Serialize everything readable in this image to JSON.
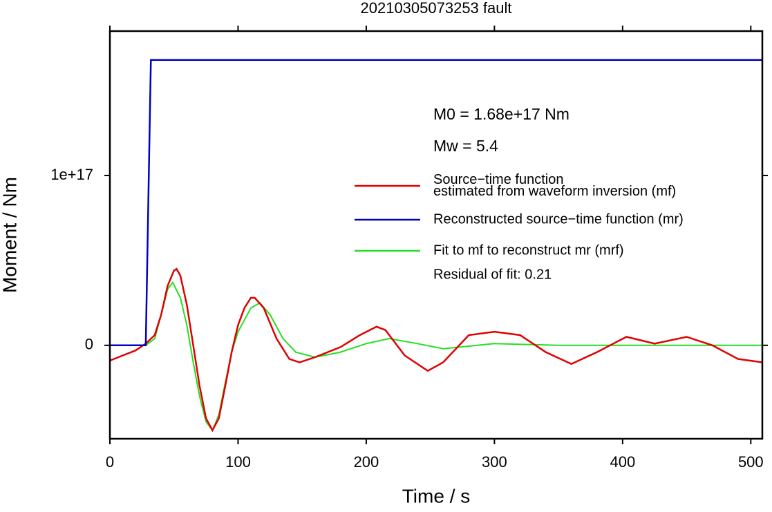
{
  "chart_data": {
    "type": "line",
    "title": "20210305073253 fault",
    "xlabel": "Time / s",
    "ylabel": "Moment / Nm",
    "xlim": [
      0,
      509
    ],
    "ylim": [
      -5.5e+16,
      1.85e+17
    ],
    "xticks": [
      0,
      100,
      200,
      300,
      400,
      500
    ],
    "yticks": [
      0,
      {
        "value": 1e+17,
        "label": "1e+17"
      }
    ],
    "annotations": [
      "M0 = 1.68e+17 Nm",
      "Mw = 5.4",
      "Residual of fit: 0.21"
    ],
    "series": [
      {
        "name": "Source−time function\nestimated from waveform inversion (mf)",
        "color": "#e00000",
        "x": [
          0,
          10,
          20,
          28,
          35,
          40,
          45,
          50,
          52,
          55,
          60,
          65,
          70,
          75,
          80,
          85,
          90,
          95,
          100,
          105,
          110,
          113,
          120,
          130,
          140,
          148,
          160,
          180,
          195,
          208,
          215,
          230,
          248,
          260,
          280,
          300,
          320,
          340,
          360,
          380,
          403,
          425,
          450,
          470,
          490,
          509
        ],
        "values": [
          -9000000000000000.0,
          -6000000000000000.0,
          -3000000000000000.0,
          1000000000000000.0,
          6000000000000000.0,
          1.8e+16,
          3.5e+16,
          4.4e+16,
          4.5e+16,
          4.1e+16,
          2.4e+16,
          0,
          -2.4e+16,
          -4.3e+16,
          -5e+16,
          -4.3e+16,
          -2.4e+16,
          -4000000000000000.0,
          1.2e+16,
          2.2e+16,
          2.8e+16,
          2.8e+16,
          2.2e+16,
          4000000000000000.0,
          -8000000000000000.0,
          -1e+16,
          -7000000000000000.0,
          -1000000000000000.0,
          6000000000000000.0,
          1.1e+16,
          9000000000000000.0,
          -6000000000000000.0,
          -1.5e+16,
          -1e+16,
          6000000000000000.0,
          8000000000000000.0,
          6000000000000000.0,
          -4000000000000000.0,
          -1.1e+16,
          -4000000000000000.0,
          5000000000000000.0,
          1000000000000000.0,
          5000000000000000.0,
          0,
          -8000000000000000.0,
          -1e+16
        ]
      },
      {
        "name": "Reconstructed source−time function (mr)",
        "color": "#0000c0",
        "x": [
          0,
          28,
          32,
          509
        ],
        "values": [
          0,
          0,
          1.68e+17,
          1.68e+17
        ]
      },
      {
        "name": "Fit to mf to reconstruct mr (mrf)",
        "color": "#22e022",
        "x": [
          28,
          35,
          40,
          45,
          49,
          55,
          60,
          65,
          70,
          75,
          80,
          85,
          90,
          95,
          100,
          110,
          117,
          125,
          135,
          145,
          160,
          180,
          200,
          218,
          240,
          260,
          300,
          350,
          509
        ],
        "values": [
          0,
          4000000000000000.0,
          1.8e+16,
          3.3e+16,
          3.7e+16,
          2.8e+16,
          1.2e+16,
          -1e+16,
          -3e+16,
          -4.5e+16,
          -5e+16,
          -4.1e+16,
          -2.2e+16,
          -4000000000000000.0,
          8000000000000000.0,
          2.2e+16,
          2.5e+16,
          1.8e+16,
          4000000000000000.0,
          -4000000000000000.0,
          -7000000000000000.0,
          -4000000000000000.0,
          1000000000000000.0,
          4000000000000000.0,
          1000000000000000.0,
          -2000000000000000.0,
          1000000000000000.0,
          0,
          0
        ]
      }
    ]
  }
}
